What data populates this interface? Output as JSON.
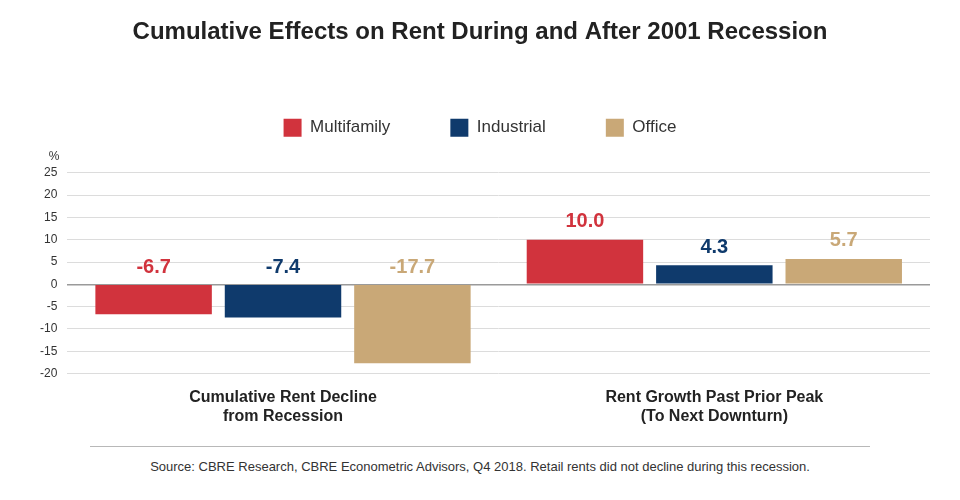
{
  "chart_data": {
    "type": "bar",
    "title": "Cumulative Effects on Rent During and After 2001 Recession",
    "ylabel": "%",
    "categories": [
      "Cumulative Rent Decline\nfrom Recession",
      "Rent Growth Past Prior Peak\n(To Next Downturn)"
    ],
    "series": [
      {
        "name": "Multifamily",
        "color": "#d1333d",
        "values": [
          -6.7,
          10.0
        ],
        "value_labels": [
          "-6.7",
          "10.0"
        ]
      },
      {
        "name": "Industrial",
        "color": "#0f3a6c",
        "values": [
          -7.4,
          4.3
        ],
        "value_labels": [
          "-7.4",
          "4.3"
        ]
      },
      {
        "name": "Office",
        "color": "#c9a877",
        "values": [
          -17.7,
          5.7
        ],
        "value_labels": [
          "-17.7",
          "5.7"
        ]
      }
    ],
    "ylim": [
      -20,
      25
    ],
    "yticks": [
      -20,
      -15,
      -10,
      -5,
      0,
      5,
      10,
      15,
      20,
      25
    ],
    "grid": true,
    "legend": "top",
    "data_labels": true,
    "note": "Source: CBRE Research, CBRE Econometric Advisors, Q4 2018.  Retail rents did not decline during this recession."
  }
}
